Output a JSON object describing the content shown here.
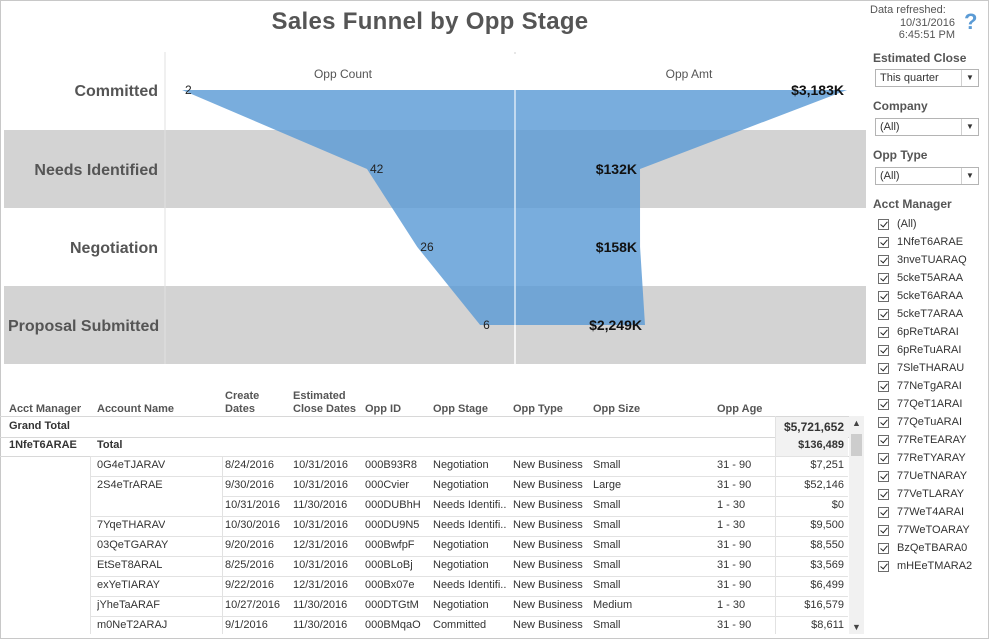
{
  "title": "Sales Funnel by Opp Stage",
  "refresh": {
    "label": "Data refreshed:",
    "date": "10/31/2016",
    "time": "6:45:51 PM"
  },
  "help_icon": "help-icon",
  "chart_data": {
    "type": "funnel",
    "stages": [
      "Committed",
      "Needs Identified",
      "Negotiation",
      "Proposal Submitted"
    ],
    "series": [
      {
        "name": "Opp Count",
        "values": [
          2,
          42,
          26,
          6
        ],
        "labels": [
          "2",
          "42",
          "26",
          "6"
        ]
      },
      {
        "name": "Opp Amt",
        "values": [
          3183,
          132,
          158,
          2249
        ],
        "labels": [
          "$3,183K",
          "$132K",
          "$158K",
          "$2,249K"
        ]
      }
    ],
    "colors": {
      "bar": "#5b9bd5",
      "band": "#d3d3d3"
    }
  },
  "filters": {
    "estimated_close": {
      "title": "Estimated Close",
      "value": "This quarter"
    },
    "company": {
      "title": "Company",
      "value": "(All)"
    },
    "opp_type": {
      "title": "Opp Type",
      "value": "(All)"
    },
    "acct_manager": {
      "title": "Acct Manager",
      "items": [
        "(All)",
        "1NfeT6ARAE",
        "3nveTUARAQ",
        "5ckeT5ARAA",
        "5ckeT6ARAA",
        "5ckeT7ARAA",
        "6pReTtARAI",
        "6pReTuARAI",
        "7SleTHARAU",
        "77NeTgARAI",
        "77QeT1ARAI",
        "77QeTuARAI",
        "77ReTEARAY",
        "77ReTYARAY",
        "77UeTNARAY",
        "77VeTLARAY",
        "77WeT4ARAI",
        "77WeTOARAY",
        "BzQeTBARA0",
        "mHEeTMARA2"
      ]
    }
  },
  "table": {
    "headers": {
      "acct_manager": "Acct Manager",
      "account_name": "Account Name",
      "create_dates": "Create Dates",
      "estimated_close_dates": "Estimated Close Dates",
      "opp_id": "Opp ID",
      "opp_stage": "Opp Stage",
      "opp_type": "Opp Type",
      "opp_size": "Opp Size",
      "opp_age": "Opp Age"
    },
    "grand_total": {
      "label": "Grand Total",
      "value": "$5,721,652"
    },
    "group": {
      "manager": "1NfeT6ARAE",
      "total_label": "Total",
      "total_value": "$136,489"
    },
    "rows": [
      {
        "account": "0G4eTJARAV",
        "create": "8/24/2016",
        "close": "10/31/2016",
        "id": "000B93R8",
        "stage": "Negotiation",
        "type": "New Business",
        "size": "Small",
        "age": "31 - 90",
        "amount": "$7,251"
      },
      {
        "account": "2S4eTrARAE",
        "create": "9/30/2016",
        "close": "10/31/2016",
        "id": "000Cvier",
        "stage": "Negotiation",
        "type": "New Business",
        "size": "Large",
        "age": "31 - 90",
        "amount": "$52,146"
      },
      {
        "account": "",
        "create": "10/31/2016",
        "close": "11/30/2016",
        "id": "000DUBhH",
        "stage": "Needs Identifi..",
        "type": "New Business",
        "size": "Small",
        "age": "1 - 30",
        "amount": "$0"
      },
      {
        "account": "7YqeTHARAV",
        "create": "10/30/2016",
        "close": "10/31/2016",
        "id": "000DU9N5",
        "stage": "Needs Identifi..",
        "type": "New Business",
        "size": "Small",
        "age": "1 - 30",
        "amount": "$9,500"
      },
      {
        "account": "03QeTGARAY",
        "create": "9/20/2016",
        "close": "12/31/2016",
        "id": "000BwfpF",
        "stage": "Negotiation",
        "type": "New Business",
        "size": "Small",
        "age": "31 - 90",
        "amount": "$8,550"
      },
      {
        "account": "EtSeT8ARAL",
        "create": "8/25/2016",
        "close": "10/31/2016",
        "id": "000BLoBj",
        "stage": "Negotiation",
        "type": "New Business",
        "size": "Small",
        "age": "31 - 90",
        "amount": "$3,569"
      },
      {
        "account": "exYeTIARAY",
        "create": "9/22/2016",
        "close": "12/31/2016",
        "id": "000Bx07e",
        "stage": "Needs Identifi..",
        "type": "New Business",
        "size": "Small",
        "age": "31 - 90",
        "amount": "$6,499"
      },
      {
        "account": "jYheTaARAF",
        "create": "10/27/2016",
        "close": "11/30/2016",
        "id": "000DTGtM",
        "stage": "Negotiation",
        "type": "New Business",
        "size": "Medium",
        "age": "1 - 30",
        "amount": "$16,579"
      },
      {
        "account": "m0NeT2ARAJ",
        "create": "9/1/2016",
        "close": "11/30/2016",
        "id": "000BMqaO",
        "stage": "Committed",
        "type": "New Business",
        "size": "Small",
        "age": "31 - 90",
        "amount": "$8,611"
      }
    ]
  }
}
